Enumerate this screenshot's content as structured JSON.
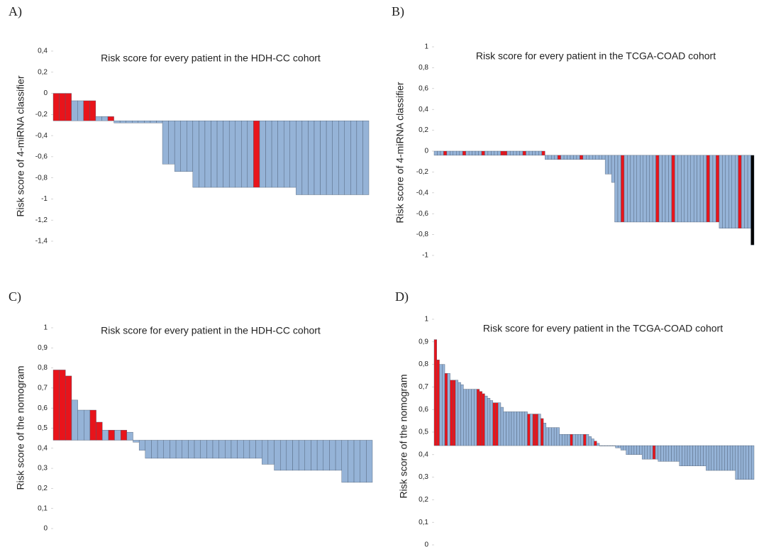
{
  "chart_data": [
    {
      "type": "bar",
      "panel_label": "A)",
      "title": "Risk score for every patient in the HDH-CC cohort",
      "y_label": "Risk score of 4-miRNA classifier",
      "baseline": -0.26,
      "ylim": [
        -1.4,
        0.4
      ],
      "yticks": [
        {
          "value": 0.4,
          "label": "0,4"
        },
        {
          "value": 0.2,
          "label": "0,2"
        },
        0,
        {
          "value": -0.2,
          "label": "-0,2"
        },
        {
          "value": -0.4,
          "label": "-0,4"
        },
        {
          "value": -0.6,
          "label": "-0,6"
        },
        {
          "value": -0.8,
          "label": "-0,8"
        },
        -1,
        {
          "value": -1.2,
          "label": "-1,2"
        },
        {
          "value": -1.4,
          "label": "-1,4"
        }
      ],
      "values": [
        0,
        0,
        0,
        -0.07,
        -0.07,
        -0.07,
        -0.07,
        -0.22,
        -0.22,
        -0.22,
        -0.28,
        -0.28,
        -0.28,
        -0.28,
        -0.28,
        -0.28,
        -0.28,
        -0.28,
        -0.67,
        -0.67,
        -0.74,
        -0.74,
        -0.74,
        -0.89,
        -0.89,
        -0.89,
        -0.89,
        -0.89,
        -0.89,
        -0.89,
        -0.89,
        -0.89,
        -0.89,
        -0.89,
        -0.89,
        -0.89,
        -0.89,
        -0.89,
        -0.89,
        -0.89,
        -0.96,
        -0.96,
        -0.96,
        -0.96,
        -0.96,
        -0.96,
        -0.96,
        -0.96,
        -0.96,
        -0.96,
        -0.96,
        -0.96
      ],
      "colors": [
        "#e8141b",
        "#e8141b",
        "#e8141b",
        "#95b3d7",
        "#95b3d7",
        "#e8141b",
        "#e8141b",
        "#95b3d7",
        "#95b3d7",
        "#e8141b",
        "#95b3d7",
        "#95b3d7",
        "#95b3d7",
        "#95b3d7",
        "#95b3d7",
        "#95b3d7",
        "#95b3d7",
        "#95b3d7",
        "#95b3d7",
        "#95b3d7",
        "#95b3d7",
        "#95b3d7",
        "#95b3d7",
        "#95b3d7",
        "#95b3d7",
        "#95b3d7",
        "#95b3d7",
        "#95b3d7",
        "#95b3d7",
        "#95b3d7",
        "#95b3d7",
        "#95b3d7",
        "#95b3d7",
        "#e8141b",
        "#95b3d7",
        "#95b3d7",
        "#95b3d7",
        "#95b3d7",
        "#95b3d7",
        "#95b3d7",
        "#95b3d7",
        "#95b3d7",
        "#95b3d7",
        "#95b3d7",
        "#95b3d7",
        "#95b3d7",
        "#95b3d7",
        "#95b3d7",
        "#95b3d7",
        "#95b3d7",
        "#95b3d7",
        "#95b3d7"
      ]
    },
    {
      "type": "bar",
      "panel_label": "B)",
      "title": "Risk score for every patient in the TCGA-COAD cohort",
      "y_label": "Risk score of 4-miRNA classifier",
      "baseline": -0.04,
      "ylim": [
        -1,
        1
      ],
      "yticks": [
        1,
        {
          "value": 0.8,
          "label": "0,8"
        },
        {
          "value": 0.6,
          "label": "0,6"
        },
        {
          "value": 0.4,
          "label": "0,4"
        },
        {
          "value": 0.2,
          "label": "0,2"
        },
        0,
        {
          "value": -0.2,
          "label": "-0,2"
        },
        {
          "value": -0.4,
          "label": "-0,4"
        },
        {
          "value": -0.6,
          "label": "-0,6"
        },
        {
          "value": -0.8,
          "label": "-0,8"
        },
        -1
      ],
      "values": [
        0,
        0,
        0,
        0,
        0,
        0,
        0,
        0,
        0,
        0,
        0,
        0,
        0,
        0,
        0,
        0,
        0,
        0,
        0,
        0,
        0,
        0,
        0,
        0,
        0,
        0,
        0,
        0,
        0,
        0,
        0,
        0,
        0,
        0,
        0,
        -0.08,
        -0.08,
        -0.08,
        -0.08,
        -0.08,
        -0.08,
        -0.08,
        -0.08,
        -0.08,
        -0.08,
        -0.08,
        -0.08,
        -0.08,
        -0.08,
        -0.08,
        -0.08,
        -0.08,
        -0.08,
        -0.08,
        -0.22,
        -0.22,
        -0.3,
        -0.68,
        -0.68,
        -0.68,
        -0.68,
        -0.68,
        -0.68,
        -0.68,
        -0.68,
        -0.68,
        -0.68,
        -0.68,
        -0.68,
        -0.68,
        -0.68,
        -0.68,
        -0.68,
        -0.68,
        -0.68,
        -0.68,
        -0.68,
        -0.68,
        -0.68,
        -0.68,
        -0.68,
        -0.68,
        -0.68,
        -0.68,
        -0.68,
        -0.68,
        -0.68,
        -0.68,
        -0.68,
        -0.68,
        -0.74,
        -0.74,
        -0.74,
        -0.74,
        -0.74,
        -0.74,
        -0.74,
        -0.74,
        -0.74,
        -0.74,
        -0.9
      ],
      "colors": [
        "#95b3d7",
        "#95b3d7",
        "#95b3d7",
        "#e8141b",
        "#95b3d7",
        "#95b3d7",
        "#95b3d7",
        "#95b3d7",
        "#95b3d7",
        "#e8141b",
        "#95b3d7",
        "#95b3d7",
        "#95b3d7",
        "#95b3d7",
        "#95b3d7",
        "#e8141b",
        "#95b3d7",
        "#95b3d7",
        "#95b3d7",
        "#95b3d7",
        "#95b3d7",
        "#e8141b",
        "#e8141b",
        "#95b3d7",
        "#95b3d7",
        "#95b3d7",
        "#95b3d7",
        "#95b3d7",
        "#e8141b",
        "#95b3d7",
        "#95b3d7",
        "#95b3d7",
        "#95b3d7",
        "#95b3d7",
        "#e8141b",
        "#95b3d7",
        "#95b3d7",
        "#95b3d7",
        "#95b3d7",
        "#e8141b",
        "#95b3d7",
        "#95b3d7",
        "#95b3d7",
        "#95b3d7",
        "#95b3d7",
        "#95b3d7",
        "#e8141b",
        "#95b3d7",
        "#95b3d7",
        "#95b3d7",
        "#95b3d7",
        "#95b3d7",
        "#95b3d7",
        "#95b3d7",
        "#95b3d7",
        "#95b3d7",
        "#95b3d7",
        "#95b3d7",
        "#95b3d7",
        "#e8141b",
        "#95b3d7",
        "#95b3d7",
        "#95b3d7",
        "#95b3d7",
        "#95b3d7",
        "#95b3d7",
        "#95b3d7",
        "#95b3d7",
        "#95b3d7",
        "#95b3d7",
        "#e8141b",
        "#95b3d7",
        "#95b3d7",
        "#95b3d7",
        "#95b3d7",
        "#e8141b",
        "#95b3d7",
        "#95b3d7",
        "#95b3d7",
        "#95b3d7",
        "#95b3d7",
        "#95b3d7",
        "#95b3d7",
        "#95b3d7",
        "#95b3d7",
        "#95b3d7",
        "#e8141b",
        "#95b3d7",
        "#95b3d7",
        "#e8141b",
        "#95b3d7",
        "#95b3d7",
        "#95b3d7",
        "#95b3d7",
        "#95b3d7",
        "#95b3d7",
        "#e8141b",
        "#95b3d7",
        "#95b3d7",
        "#95b3d7"
      ]
    },
    {
      "type": "bar",
      "panel_label": "C)",
      "title": "Risk score for every patient in the HDH-CC cohort",
      "y_label": "Risk score of the nomogram",
      "baseline": 0.44,
      "ylim": [
        0,
        1
      ],
      "yticks": [
        1,
        {
          "value": 0.9,
          "label": "0,9"
        },
        {
          "value": 0.8,
          "label": "0,8"
        },
        {
          "value": 0.7,
          "label": "0,7"
        },
        {
          "value": 0.6,
          "label": "0,6"
        },
        {
          "value": 0.5,
          "label": "0,5"
        },
        {
          "value": 0.4,
          "label": "0,4"
        },
        {
          "value": 0.3,
          "label": "0,3"
        },
        {
          "value": 0.2,
          "label": "0,2"
        },
        {
          "value": 0.1,
          "label": "0,1"
        },
        0
      ],
      "values": [
        0.79,
        0.79,
        0.76,
        0.64,
        0.59,
        0.59,
        0.59,
        0.53,
        0.49,
        0.49,
        0.49,
        0.49,
        0.48,
        0.43,
        0.39,
        0.35,
        0.35,
        0.35,
        0.35,
        0.35,
        0.35,
        0.35,
        0.35,
        0.35,
        0.35,
        0.35,
        0.35,
        0.35,
        0.35,
        0.35,
        0.35,
        0.35,
        0.35,
        0.35,
        0.32,
        0.32,
        0.29,
        0.29,
        0.29,
        0.29,
        0.29,
        0.29,
        0.29,
        0.29,
        0.29,
        0.29,
        0.29,
        0.23,
        0.23,
        0.23,
        0.23,
        0.23
      ],
      "colors": [
        "#e8141b",
        "#e8141b",
        "#e8141b",
        "#95b3d7",
        "#95b3d7",
        "#95b3d7",
        "#e8141b",
        "#e8141b",
        "#95b3d7",
        "#e8141b",
        "#95b3d7",
        "#e8141b",
        "#95b3d7",
        "#95b3d7",
        "#95b3d7",
        "#95b3d7",
        "#95b3d7",
        "#95b3d7",
        "#95b3d7",
        "#95b3d7",
        "#95b3d7",
        "#95b3d7",
        "#95b3d7",
        "#95b3d7",
        "#95b3d7",
        "#95b3d7",
        "#95b3d7",
        "#95b3d7",
        "#95b3d7",
        "#95b3d7",
        "#95b3d7",
        "#95b3d7",
        "#95b3d7",
        "#95b3d7",
        "#95b3d7",
        "#95b3d7",
        "#95b3d7",
        "#95b3d7",
        "#95b3d7",
        "#95b3d7",
        "#95b3d7",
        "#95b3d7",
        "#95b3d7",
        "#95b3d7",
        "#95b3d7",
        "#95b3d7",
        "#95b3d7",
        "#95b3d7",
        "#95b3d7",
        "#95b3d7",
        "#95b3d7",
        "#95b3d7"
      ]
    },
    {
      "type": "bar",
      "panel_label": "D)",
      "title": "Risk score for every patient in the TCGA-COAD cohort",
      "y_label": "Risk score of the nomogram",
      "baseline": 0.44,
      "ylim": [
        0,
        1
      ],
      "yticks": [
        1,
        {
          "value": 0.9,
          "label": "0,9"
        },
        {
          "value": 0.8,
          "label": "0,8"
        },
        {
          "value": 0.7,
          "label": "0,7"
        },
        {
          "value": 0.6,
          "label": "0,6"
        },
        {
          "value": 0.5,
          "label": "0,5"
        },
        {
          "value": 0.4,
          "label": "0,4"
        },
        {
          "value": 0.3,
          "label": "0,3"
        },
        {
          "value": 0.2,
          "label": "0,2"
        },
        {
          "value": 0.1,
          "label": "0,1"
        },
        0
      ],
      "values": [
        0.91,
        0.82,
        0.8,
        0.8,
        0.76,
        0.76,
        0.73,
        0.73,
        0.73,
        0.72,
        0.71,
        0.69,
        0.69,
        0.69,
        0.69,
        0.69,
        0.69,
        0.68,
        0.67,
        0.66,
        0.65,
        0.64,
        0.63,
        0.63,
        0.63,
        0.61,
        0.59,
        0.59,
        0.59,
        0.59,
        0.59,
        0.59,
        0.59,
        0.59,
        0.59,
        0.58,
        0.58,
        0.58,
        0.58,
        0.58,
        0.56,
        0.54,
        0.52,
        0.52,
        0.52,
        0.52,
        0.52,
        0.49,
        0.49,
        0.49,
        0.49,
        0.49,
        0.49,
        0.49,
        0.49,
        0.49,
        0.49,
        0.49,
        0.48,
        0.47,
        0.46,
        0.45,
        0.44,
        0.44,
        0.44,
        0.44,
        0.44,
        0.44,
        0.43,
        0.43,
        0.42,
        0.42,
        0.4,
        0.4,
        0.4,
        0.4,
        0.4,
        0.4,
        0.38,
        0.38,
        0.38,
        0.38,
        0.38,
        0.38,
        0.37,
        0.37,
        0.37,
        0.37,
        0.37,
        0.37,
        0.37,
        0.37,
        0.35,
        0.35,
        0.35,
        0.35,
        0.35,
        0.35,
        0.35,
        0.35,
        0.35,
        0.35,
        0.33,
        0.33,
        0.33,
        0.33,
        0.33,
        0.33,
        0.33,
        0.33,
        0.33,
        0.33,
        0.33,
        0.29,
        0.29,
        0.29,
        0.29,
        0.29,
        0.29,
        0.29
      ],
      "colors": [
        "#e8141b",
        "#e8141b",
        "#95b3d7",
        "#95b3d7",
        "#e8141b",
        "#95b3d7",
        "#e8141b",
        "#e8141b",
        "#95b3d7",
        "#95b3d7",
        "#95b3d7",
        "#95b3d7",
        "#95b3d7",
        "#95b3d7",
        "#95b3d7",
        "#95b3d7",
        "#e8141b",
        "#e8141b",
        "#e8141b",
        "#95b3d7",
        "#95b3d7",
        "#95b3d7",
        "#e8141b",
        "#e8141b",
        "#95b3d7",
        "#95b3d7",
        "#95b3d7",
        "#95b3d7",
        "#95b3d7",
        "#95b3d7",
        "#95b3d7",
        "#95b3d7",
        "#95b3d7",
        "#95b3d7",
        "#95b3d7",
        "#e8141b",
        "#95b3d7",
        "#e8141b",
        "#e8141b",
        "#95b3d7",
        "#e8141b",
        "#95b3d7",
        "#95b3d7",
        "#95b3d7",
        "#95b3d7",
        "#95b3d7",
        "#95b3d7",
        "#95b3d7",
        "#95b3d7",
        "#95b3d7",
        "#95b3d7",
        "#e8141b",
        "#95b3d7",
        "#95b3d7",
        "#95b3d7",
        "#95b3d7",
        "#e8141b",
        "#95b3d7",
        "#95b3d7",
        "#95b3d7",
        "#e8141b",
        "#95b3d7",
        "#95b3d7",
        "#95b3d7",
        "#95b3d7",
        "#95b3d7",
        "#95b3d7",
        "#95b3d7",
        "#95b3d7",
        "#95b3d7",
        "#95b3d7",
        "#95b3d7",
        "#95b3d7",
        "#95b3d7",
        "#95b3d7",
        "#95b3d7",
        "#95b3d7",
        "#95b3d7",
        "#95b3d7",
        "#95b3d7",
        "#95b3d7",
        "#95b3d7",
        "#e8141b",
        "#95b3d7",
        "#95b3d7",
        "#95b3d7",
        "#95b3d7",
        "#95b3d7",
        "#95b3d7",
        "#95b3d7",
        "#95b3d7",
        "#95b3d7",
        "#95b3d7",
        "#95b3d7",
        "#95b3d7",
        "#95b3d7",
        "#95b3d7",
        "#95b3d7",
        "#95b3d7",
        "#95b3d7",
        "#95b3d7",
        "#95b3d7",
        "#95b3d7",
        "#95b3d7",
        "#95b3d7",
        "#95b3d7",
        "#95b3d7",
        "#95b3d7",
        "#95b3d7",
        "#95b3d7",
        "#95b3d7",
        "#95b3d7",
        "#95b3d7",
        "#95b3d7",
        "#95b3d7",
        "#95b3d7",
        "#95b3d7",
        "#95b3d7",
        "#95b3d7",
        "#95b3d7"
      ]
    }
  ]
}
